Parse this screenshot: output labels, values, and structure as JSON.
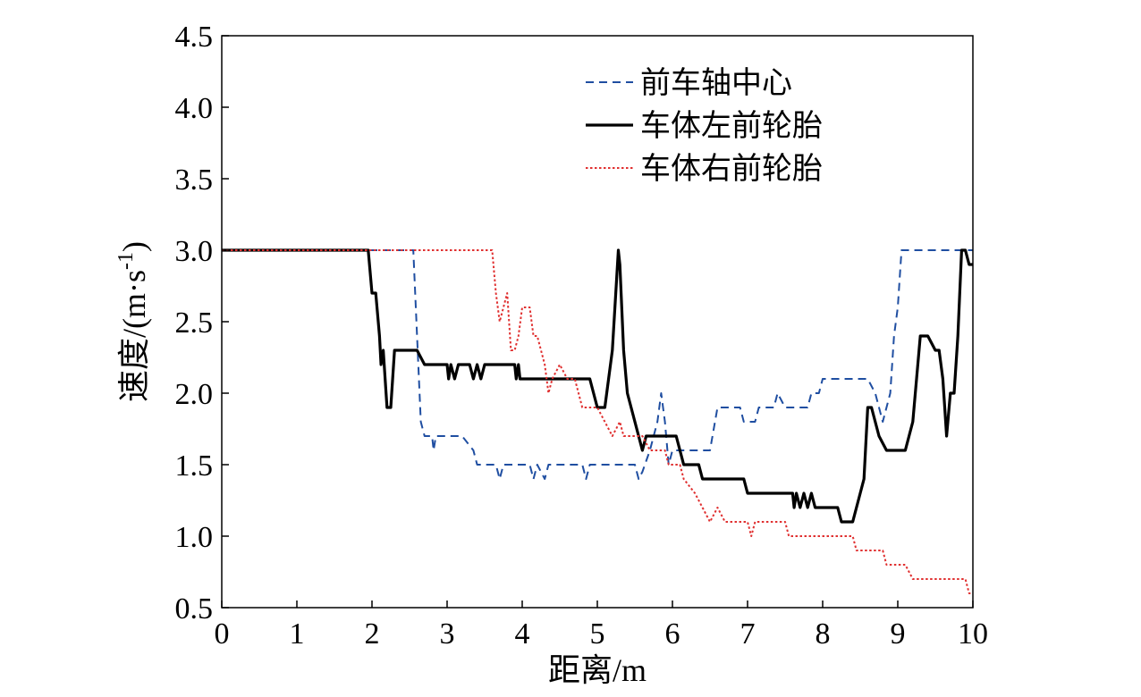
{
  "chart_data": {
    "type": "line",
    "xlabel": "距离/m",
    "ylabel": "速度/(m·s",
    "ylabel_sup": "-1",
    "ylabel_end": ")",
    "xlim": [
      0,
      10
    ],
    "ylim": [
      0.5,
      4.5
    ],
    "x_ticks": [
      "0",
      "1",
      "2",
      "3",
      "4",
      "5",
      "6",
      "7",
      "8",
      "9",
      "10"
    ],
    "y_ticks": [
      "0.5",
      "1.0",
      "1.5",
      "2.0",
      "2.5",
      "3.0",
      "3.5",
      "4.0",
      "4.5"
    ],
    "grid": false,
    "legend_position": "top-right",
    "series": [
      {
        "name": "前车轴中心",
        "color": "#1f4ea1",
        "style": "dashed",
        "points": [
          [
            0,
            3.0
          ],
          [
            2.55,
            3.0
          ],
          [
            2.6,
            2.4
          ],
          [
            2.65,
            1.8
          ],
          [
            2.7,
            1.7
          ],
          [
            2.8,
            1.7
          ],
          [
            2.82,
            1.6
          ],
          [
            2.85,
            1.7
          ],
          [
            3.2,
            1.7
          ],
          [
            3.35,
            1.6
          ],
          [
            3.4,
            1.5
          ],
          [
            3.65,
            1.5
          ],
          [
            3.7,
            1.4
          ],
          [
            3.75,
            1.5
          ],
          [
            4.1,
            1.5
          ],
          [
            4.15,
            1.4
          ],
          [
            4.2,
            1.5
          ],
          [
            4.3,
            1.4
          ],
          [
            4.35,
            1.5
          ],
          [
            4.8,
            1.5
          ],
          [
            4.85,
            1.4
          ],
          [
            4.9,
            1.5
          ],
          [
            5.5,
            1.5
          ],
          [
            5.55,
            1.4
          ],
          [
            5.6,
            1.45
          ],
          [
            5.7,
            1.6
          ],
          [
            5.8,
            1.8
          ],
          [
            5.85,
            2.0
          ],
          [
            5.9,
            1.8
          ],
          [
            5.95,
            1.5
          ],
          [
            6.0,
            1.6
          ],
          [
            6.5,
            1.6
          ],
          [
            6.6,
            1.9
          ],
          [
            6.9,
            1.9
          ],
          [
            6.95,
            1.8
          ],
          [
            7.1,
            1.8
          ],
          [
            7.15,
            1.9
          ],
          [
            7.35,
            1.9
          ],
          [
            7.4,
            2.0
          ],
          [
            7.5,
            1.9
          ],
          [
            7.8,
            1.9
          ],
          [
            7.85,
            2.0
          ],
          [
            7.95,
            2.0
          ],
          [
            8.0,
            2.1
          ],
          [
            8.6,
            2.1
          ],
          [
            8.7,
            2.0
          ],
          [
            8.8,
            1.8
          ],
          [
            8.9,
            2.0
          ],
          [
            8.95,
            2.4
          ],
          [
            9.0,
            2.6
          ],
          [
            9.05,
            3.0
          ],
          [
            10.0,
            3.0
          ]
        ]
      },
      {
        "name": "车体左前轮胎",
        "color": "#000000",
        "style": "solid",
        "points": [
          [
            0,
            3.0
          ],
          [
            1.95,
            3.0
          ],
          [
            2.0,
            2.7
          ],
          [
            2.05,
            2.7
          ],
          [
            2.1,
            2.4
          ],
          [
            2.12,
            2.2
          ],
          [
            2.15,
            2.3
          ],
          [
            2.2,
            1.9
          ],
          [
            2.25,
            1.9
          ],
          [
            2.3,
            2.3
          ],
          [
            2.6,
            2.3
          ],
          [
            2.7,
            2.2
          ],
          [
            3.0,
            2.2
          ],
          [
            3.02,
            2.1
          ],
          [
            3.05,
            2.2
          ],
          [
            3.1,
            2.1
          ],
          [
            3.15,
            2.2
          ],
          [
            3.3,
            2.2
          ],
          [
            3.35,
            2.1
          ],
          [
            3.4,
            2.2
          ],
          [
            3.45,
            2.1
          ],
          [
            3.5,
            2.2
          ],
          [
            3.9,
            2.2
          ],
          [
            3.92,
            2.1
          ],
          [
            3.95,
            2.2
          ],
          [
            3.97,
            2.1
          ],
          [
            4.0,
            2.1
          ],
          [
            4.9,
            2.1
          ],
          [
            4.95,
            2.0
          ],
          [
            5.0,
            1.9
          ],
          [
            5.1,
            1.9
          ],
          [
            5.2,
            2.3
          ],
          [
            5.28,
            3.0
          ],
          [
            5.3,
            2.9
          ],
          [
            5.35,
            2.3
          ],
          [
            5.4,
            2.0
          ],
          [
            5.5,
            1.8
          ],
          [
            5.6,
            1.6
          ],
          [
            5.65,
            1.7
          ],
          [
            6.05,
            1.7
          ],
          [
            6.15,
            1.5
          ],
          [
            6.35,
            1.5
          ],
          [
            6.4,
            1.4
          ],
          [
            6.95,
            1.4
          ],
          [
            7.0,
            1.3
          ],
          [
            7.6,
            1.3
          ],
          [
            7.62,
            1.2
          ],
          [
            7.65,
            1.3
          ],
          [
            7.7,
            1.2
          ],
          [
            7.75,
            1.3
          ],
          [
            7.8,
            1.2
          ],
          [
            7.85,
            1.3
          ],
          [
            7.9,
            1.2
          ],
          [
            8.0,
            1.2
          ],
          [
            8.2,
            1.2
          ],
          [
            8.25,
            1.1
          ],
          [
            8.4,
            1.1
          ],
          [
            8.5,
            1.3
          ],
          [
            8.55,
            1.4
          ],
          [
            8.6,
            1.9
          ],
          [
            8.65,
            1.9
          ],
          [
            8.75,
            1.7
          ],
          [
            8.85,
            1.6
          ],
          [
            9.1,
            1.6
          ],
          [
            9.15,
            1.7
          ],
          [
            9.2,
            1.8
          ],
          [
            9.3,
            2.4
          ],
          [
            9.4,
            2.4
          ],
          [
            9.5,
            2.3
          ],
          [
            9.55,
            2.3
          ],
          [
            9.6,
            2.1
          ],
          [
            9.65,
            1.7
          ],
          [
            9.7,
            2.0
          ],
          [
            9.75,
            2.0
          ],
          [
            9.8,
            2.4
          ],
          [
            9.85,
            3.0
          ],
          [
            9.9,
            3.0
          ],
          [
            9.95,
            2.9
          ],
          [
            10.0,
            2.9
          ]
        ]
      },
      {
        "name": "车体右前轮胎",
        "color": "#e03030",
        "style": "dotted",
        "points": [
          [
            0,
            3.0
          ],
          [
            3.6,
            3.0
          ],
          [
            3.65,
            2.7
          ],
          [
            3.7,
            2.5
          ],
          [
            3.75,
            2.6
          ],
          [
            3.8,
            2.7
          ],
          [
            3.85,
            2.3
          ],
          [
            3.9,
            2.3
          ],
          [
            3.95,
            2.4
          ],
          [
            4.0,
            2.6
          ],
          [
            4.1,
            2.6
          ],
          [
            4.15,
            2.4
          ],
          [
            4.2,
            2.4
          ],
          [
            4.3,
            2.2
          ],
          [
            4.35,
            2.0
          ],
          [
            4.4,
            2.1
          ],
          [
            4.5,
            2.2
          ],
          [
            4.6,
            2.1
          ],
          [
            4.7,
            2.1
          ],
          [
            4.8,
            1.9
          ],
          [
            5.0,
            1.9
          ],
          [
            5.1,
            1.8
          ],
          [
            5.2,
            1.7
          ],
          [
            5.3,
            1.8
          ],
          [
            5.35,
            1.7
          ],
          [
            5.6,
            1.7
          ],
          [
            5.7,
            1.6
          ],
          [
            5.9,
            1.6
          ],
          [
            5.95,
            1.5
          ],
          [
            6.1,
            1.5
          ],
          [
            6.15,
            1.4
          ],
          [
            6.3,
            1.3
          ],
          [
            6.4,
            1.2
          ],
          [
            6.5,
            1.1
          ],
          [
            6.6,
            1.2
          ],
          [
            6.7,
            1.1
          ],
          [
            7.0,
            1.1
          ],
          [
            7.05,
            1.0
          ],
          [
            7.1,
            1.1
          ],
          [
            7.5,
            1.1
          ],
          [
            7.55,
            1.0
          ],
          [
            8.4,
            1.0
          ],
          [
            8.45,
            0.9
          ],
          [
            8.8,
            0.9
          ],
          [
            8.85,
            0.8
          ],
          [
            9.1,
            0.8
          ],
          [
            9.2,
            0.7
          ],
          [
            9.9,
            0.7
          ],
          [
            9.95,
            0.6
          ],
          [
            10.0,
            0.6
          ]
        ]
      }
    ]
  }
}
